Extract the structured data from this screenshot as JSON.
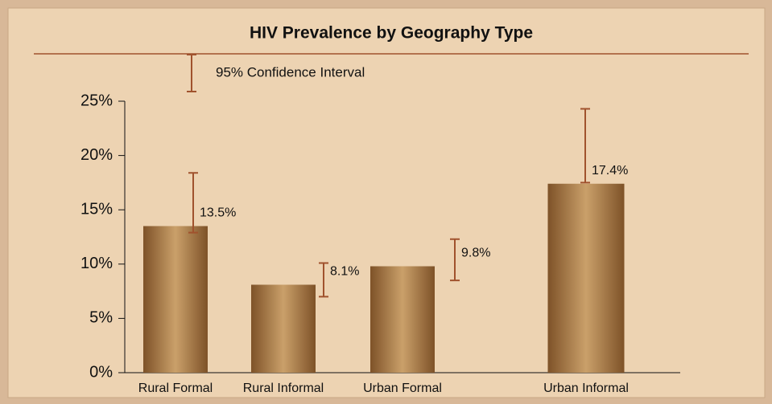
{
  "chart_data": {
    "type": "bar",
    "title": "HIV Prevalence by Geography Type",
    "legend": "95% Confidence Interval",
    "categories": [
      "Rural Formal",
      "Rural Informal",
      "Urban Formal",
      "Urban Informal"
    ],
    "values": [
      13.5,
      8.1,
      9.8,
      17.4
    ],
    "value_labels": [
      "13.5%",
      "8.1%",
      "9.8%",
      "17.4%"
    ],
    "ci_low": [
      12.9,
      7.0,
      8.5,
      17.5
    ],
    "ci_high": [
      18.4,
      10.1,
      12.3,
      24.3
    ],
    "color": "#a87a45",
    "error_color": "#a0522d",
    "ylim": [
      0,
      25
    ],
    "yticks": [
      {
        "value": 0,
        "label": "0%"
      },
      {
        "value": 5,
        "label": "5%"
      },
      {
        "value": 10,
        "label": "10%"
      },
      {
        "value": 15,
        "label": "15%"
      },
      {
        "value": 20,
        "label": "20%"
      },
      {
        "value": 25,
        "label": "25%"
      }
    ]
  }
}
